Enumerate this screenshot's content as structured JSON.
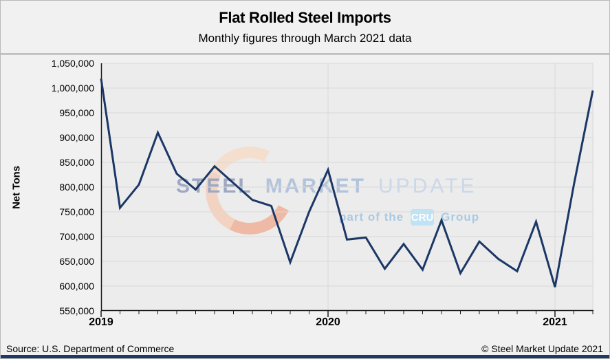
{
  "header": {
    "title": "Flat Rolled Steel Imports",
    "subtitle": "Monthly figures through March 2021 data"
  },
  "watermark": {
    "steel": "STEEL",
    "market": "MARKET",
    "update": "UPDATE",
    "part_of": "part of the",
    "badge": "CRU",
    "group": "Group"
  },
  "footer": {
    "source": "Source: U.S. Department of Commerce",
    "copyright": "© Steel Market Update 2021"
  },
  "chart_data": {
    "type": "line",
    "title": "Flat Rolled Steel Imports",
    "subtitle": "Monthly figures through March 2021 data",
    "xlabel": "",
    "ylabel": "Net Tons",
    "ylim": [
      550000,
      1050000
    ],
    "ytick_interval": 50000,
    "ytick_labels": [
      "1,050,000",
      "1,000,000",
      "950,000",
      "900,000",
      "850,000",
      "800,000",
      "750,000",
      "700,000",
      "650,000",
      "600,000",
      "550,000"
    ],
    "x_year_labels": [
      "2019",
      "2020",
      "2021"
    ],
    "grid": true,
    "legend_position": "none",
    "line_color": "#1b3766",
    "x": [
      "Jan 2019",
      "Feb 2019",
      "Mar 2019",
      "Apr 2019",
      "May 2019",
      "Jun 2019",
      "Jul 2019",
      "Aug 2019",
      "Sep 2019",
      "Oct 2019",
      "Nov 2019",
      "Dec 2019",
      "Jan 2020",
      "Feb 2020",
      "Mar 2020",
      "Apr 2020",
      "May 2020",
      "Jun 2020",
      "Jul 2020",
      "Aug 2020",
      "Sep 2020",
      "Oct 2020",
      "Nov 2020",
      "Dec 2020",
      "Jan 2021",
      "Feb 2021",
      "Mar 2021"
    ],
    "values": [
      1019000,
      758000,
      805000,
      910000,
      827000,
      795000,
      842000,
      808000,
      774000,
      762000,
      648000,
      750000,
      835000,
      694000,
      698000,
      635000,
      685000,
      633000,
      733000,
      626000,
      690000,
      655000,
      630000,
      730000,
      598000,
      805000,
      995000
    ]
  }
}
